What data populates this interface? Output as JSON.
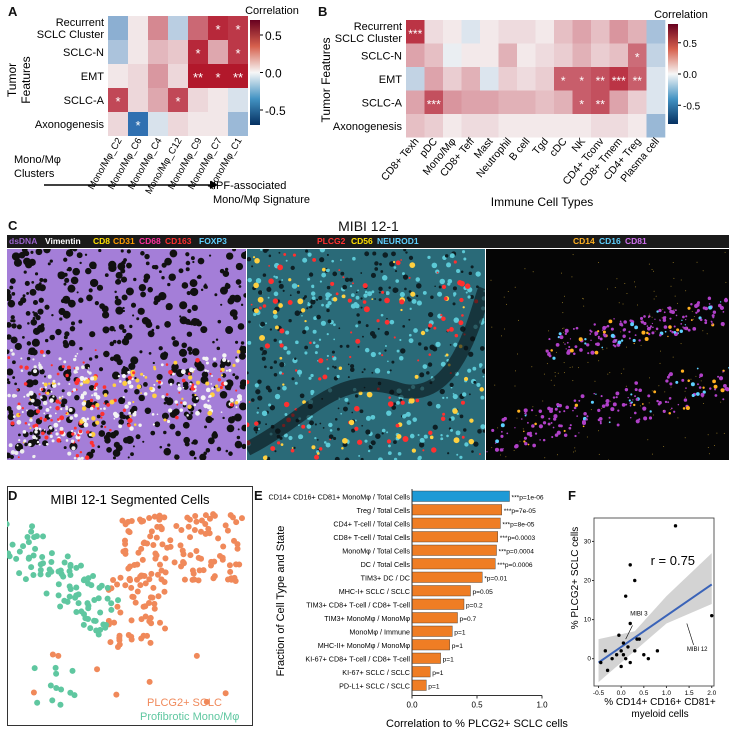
{
  "panel_labels": {
    "a": "A",
    "b": "B",
    "c": "C",
    "d": "D",
    "e": "E",
    "f": "F"
  },
  "panel_a": {
    "axis_title_line1": "Tumor",
    "axis_title_line2": "Features",
    "rows": [
      "Recurrent SCLC Cluster",
      "SCLC-N",
      "EMT",
      "SCLC-A",
      "Axonogenesis"
    ],
    "row_line1": [
      "Recurrent",
      "",
      "",
      "",
      ""
    ],
    "row_line2": [
      "SCLC Cluster",
      "SCLC-N",
      "EMT",
      "SCLC-A",
      "Axonogenesis"
    ],
    "columns": [
      "Mono/Mφ_C2",
      "Mono/Mφ_C6",
      "Mono/Mφ_C4",
      "Mono/Mφ_C12",
      "Mono/Mφ_C9",
      "Mono/Mφ_C7",
      "Mono/Mφ_C1"
    ],
    "colorbar_title": "Correlation",
    "colorbar_ticks": [
      "0.5",
      "0.0",
      "-0.5"
    ],
    "bottom_left_line1": "Mono/Mφ",
    "bottom_left_line2": "Clusters",
    "bottom_right_line1": "IPF-associated",
    "bottom_right_line2": "Mono/Mφ Signature",
    "star_marks": [
      [
        "",
        "",
        "",
        "",
        "",
        "*",
        "*"
      ],
      [
        "",
        "",
        "",
        "",
        "*",
        "",
        "*"
      ],
      [
        "",
        "",
        "",
        "",
        "**",
        "*",
        "**"
      ],
      [
        "*",
        "",
        "",
        "*",
        "",
        "",
        ""
      ],
      [
        "",
        "*",
        "",
        "",
        "",
        "",
        ""
      ]
    ]
  },
  "chart_data": [
    {
      "type": "heatmap",
      "title": "Panel A",
      "rows": [
        "Recurrent SCLC Cluster",
        "SCLC-N",
        "EMT",
        "SCLC-A",
        "Axonogenesis"
      ],
      "columns": [
        "Mono/Mφ_C2",
        "Mono/Mφ_C6",
        "Mono/Mφ_C4",
        "Mono/Mφ_C12",
        "Mono/Mφ_C9",
        "Mono/Mφ_C7",
        "Mono/Mφ_C1"
      ],
      "values": [
        [
          -0.35,
          0.05,
          0.35,
          -0.2,
          0.45,
          0.65,
          0.6
        ],
        [
          -0.25,
          0.05,
          0.2,
          0.15,
          0.65,
          0.25,
          0.6
        ],
        [
          0.05,
          0.1,
          0.3,
          0.1,
          0.75,
          0.7,
          0.75
        ],
        [
          0.55,
          0.1,
          0.25,
          0.55,
          0.1,
          0.05,
          -0.1
        ],
        [
          0.1,
          -0.65,
          -0.1,
          0.1,
          0.05,
          0.05,
          -0.3
        ]
      ],
      "vmin": -0.7,
      "vmax": 0.7,
      "colorbar_label": "Correlation"
    },
    {
      "type": "heatmap",
      "title": "Panel B",
      "rows": [
        "Recurrent SCLC Cluster",
        "SCLC-N",
        "EMT",
        "SCLC-A",
        "Axonogenesis"
      ],
      "columns": [
        "CD8+ Texh",
        "pDC",
        "Mono/Mφ",
        "CD8+ Teff",
        "Mast",
        "Neutrophil",
        "B cell",
        "Tgd",
        "cDC",
        "NK",
        "CD4+ Tconv",
        "CD8+ Tmem",
        "CD4+ Treg",
        "Plasma cell"
      ],
      "values": [
        [
          0.7,
          0.1,
          0.05,
          -0.1,
          0.05,
          0.1,
          0.1,
          0.05,
          0.2,
          0.3,
          0.2,
          0.35,
          0.25,
          -0.3
        ],
        [
          0.3,
          0.2,
          -0.05,
          0.05,
          0.05,
          0.25,
          0.05,
          0.1,
          0.15,
          0.25,
          0.15,
          0.2,
          0.5,
          -0.2
        ],
        [
          -0.2,
          0.3,
          0.15,
          0.25,
          -0.1,
          0.15,
          0.1,
          0.15,
          0.55,
          0.55,
          0.6,
          0.7,
          0.55,
          -0.1
        ],
        [
          0.3,
          0.6,
          0.35,
          0.3,
          0.3,
          0.25,
          0.25,
          0.2,
          0.25,
          0.55,
          0.6,
          0.3,
          0.15,
          -0.1
        ],
        [
          0.2,
          0.15,
          0.05,
          0.1,
          0.1,
          0.05,
          0.05,
          0.05,
          0.05,
          0.05,
          0.1,
          0.1,
          0.05,
          -0.35
        ]
      ],
      "vmin": -0.8,
      "vmax": 0.8,
      "colorbar_label": "Correlation"
    },
    {
      "type": "bar",
      "title": "Panel E",
      "categories": [
        "CD14+ CD16+ CD81+ MonoMφ / Total Cells",
        "Treg / Total Cells",
        "CD4+ T-cell / Total Cells",
        "CD8+ T-cell / Total Cells",
        "MonoMφ / Total Cells",
        "DC / Total Cells",
        "TIM3+ DC / DC",
        "MHC-I+ SCLC / SCLC",
        "TIM3+ CD8+ T-cell / CD8+ T-cell",
        "TIM3+ MonoMφ / MonoMφ",
        "MonoMφ / Immune",
        "MHC-II+ MonoMφ / MonoMφ",
        "KI-67+ CD8+ T-cell / CD8+ T-cell",
        "KI-67+ SCLC / SCLC",
        "PD-L1+ SCLC / SCLC"
      ],
      "values": [
        0.75,
        0.69,
        0.68,
        0.66,
        0.65,
        0.64,
        0.54,
        0.45,
        0.4,
        0.35,
        0.31,
        0.29,
        0.22,
        0.14,
        0.11
      ],
      "xlabel": "Correlation to % PLCG2+ SCLC cells",
      "ylabel": "Fraction of Cell Type and State",
      "xlim": [
        0,
        1.0
      ],
      "xticks": [
        "0.0",
        "0.5",
        "1.0"
      ]
    },
    {
      "type": "scatter",
      "title": "Panel F",
      "points": [
        [
          -0.45,
          -1
        ],
        [
          -0.3,
          -3
        ],
        [
          -0.2,
          0
        ],
        [
          -0.1,
          1
        ],
        [
          0,
          2
        ],
        [
          0.05,
          4
        ],
        [
          0.1,
          0
        ],
        [
          0.15,
          3
        ],
        [
          0.2,
          24
        ],
        [
          0.1,
          16
        ],
        [
          0.3,
          20
        ],
        [
          -0.05,
          6
        ],
        [
          0.2,
          9
        ],
        [
          0.4,
          5
        ],
        [
          0.5,
          1
        ],
        [
          0.6,
          0
        ],
        [
          0.8,
          2
        ],
        [
          0.2,
          -1
        ],
        [
          0,
          -2
        ],
        [
          0.3,
          2
        ],
        [
          0.35,
          5
        ],
        [
          1.2,
          34
        ],
        [
          2.0,
          11
        ],
        [
          -0.35,
          2
        ],
        [
          0.05,
          1
        ]
      ],
      "fit_line": {
        "x0": -0.5,
        "y0": -1,
        "x1": 2.0,
        "y1": 19
      },
      "r_label": "r = 0.75",
      "xlabel_line1": "% CD14+ CD16+ CD81+",
      "xlabel_line2": "myeloid cells",
      "ylabel": "% PLCG2+ SCLC cells",
      "xticks": [
        "-0.5",
        "0.0",
        "0.5",
        "1.0",
        "1.5",
        "2.0"
      ],
      "yticks": [
        "0",
        "10",
        "20",
        "30"
      ],
      "xlim": [
        -0.6,
        2.05
      ],
      "ylim": [
        -7,
        36
      ],
      "annotations": [
        "MIBI 3",
        "MIBI 12"
      ]
    }
  ],
  "panel_b": {
    "axis_title_line1": "Tumor Features",
    "x_title": "Immune Cell Types",
    "colorbar_title": "Correlation",
    "colorbar_ticks": [
      "0.5",
      "0.0",
      "-0.5"
    ],
    "star_marks": [
      [
        "***",
        "",
        "",
        "",
        "",
        "",
        "",
        "",
        "",
        "",
        "",
        "",
        "",
        ""
      ],
      [
        "",
        "",
        "",
        "",
        "",
        "",
        "",
        "",
        "",
        "",
        "",
        "",
        "*",
        ""
      ],
      [
        "",
        "",
        "",
        "",
        "",
        "",
        "",
        "",
        "*",
        "*",
        "**",
        "***",
        "**",
        ""
      ],
      [
        "",
        "***",
        "",
        "",
        "",
        "",
        "",
        "",
        "",
        "*",
        "**",
        "",
        "",
        ""
      ],
      [
        "",
        "",
        "",
        "",
        "",
        "",
        "",
        "",
        "",
        "",
        "",
        "",
        "",
        ""
      ]
    ]
  },
  "panel_c": {
    "title": "MIBI 12-1",
    "legend1": [
      {
        "label": "dsDNA",
        "color": "#9b64cf"
      },
      {
        "label": "Vimentin",
        "color": "#ffffff"
      },
      {
        "label": "CD8",
        "color": "#ffe000"
      },
      {
        "label": "CD31",
        "color": "#ff9d00"
      },
      {
        "label": "CD68",
        "color": "#ff2f9f"
      },
      {
        "label": "CD163",
        "color": "#ff3030"
      },
      {
        "label": "FOXP3",
        "color": "#5ed0ff"
      }
    ],
    "legend2": [
      {
        "label": "PLCG2",
        "color": "#ff3030"
      },
      {
        "label": "CD56",
        "color": "#ffe000"
      },
      {
        "label": "NEUROD1",
        "color": "#5ed0ff"
      }
    ],
    "legend3": [
      {
        "label": "CD14",
        "color": "#ffb020"
      },
      {
        "label": "CD16",
        "color": "#5ed0ff"
      },
      {
        "label": "CD81",
        "color": "#d070f0"
      }
    ]
  },
  "panel_d": {
    "title": "MIBI 12-1 Segmented Cells",
    "legend_a": "PLCG2+ SCLC",
    "legend_b": "Profibrotic Mono/Mφ",
    "color_a": "#f0895a",
    "color_b": "#5fc7a0"
  },
  "panel_e": {
    "pvals": [
      "***p=1e-06",
      "***p=7e-05",
      "***p=8e-05",
      "***p=0.0003",
      "***p=0.0004",
      "***p=0.0006",
      "*p=0.01",
      "p=0.05",
      "p=0.2",
      "p=0.7",
      "p=1",
      "p=1",
      "p=1",
      "p=1",
      "p=1"
    ],
    "highlight_color": "#1e9ad6",
    "bar_color": "#ef7d24"
  }
}
